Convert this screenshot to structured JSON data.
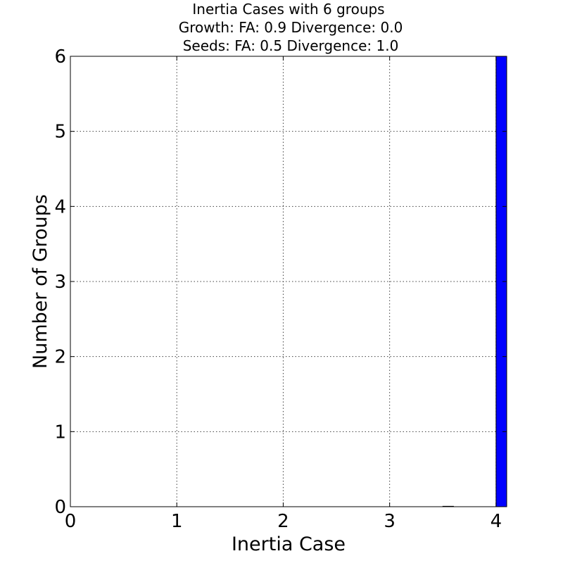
{
  "chart_data": {
    "type": "bar",
    "title_lines": [
      "Inertia Cases with 6 groups",
      "Growth: FA: 0.9 Divergence: 0.0",
      "Seeds: FA: 0.5 Divergence: 1.0"
    ],
    "xlabel": "Inertia Case",
    "ylabel": "Number of Groups",
    "xlim": [
      0,
      4.1
    ],
    "ylim": [
      0,
      6
    ],
    "x_ticks": [
      0,
      1,
      2,
      3,
      4
    ],
    "y_ticks": [
      0,
      1,
      2,
      3,
      4,
      5,
      6
    ],
    "grid": true,
    "bars": [
      {
        "x_start": 3.5,
        "x_end": 3.6,
        "value": 0
      },
      {
        "x_start": 4.0,
        "x_end": 4.1,
        "value": 6
      }
    ],
    "bar_color": "#0000ff",
    "edge_color": "#000000"
  }
}
